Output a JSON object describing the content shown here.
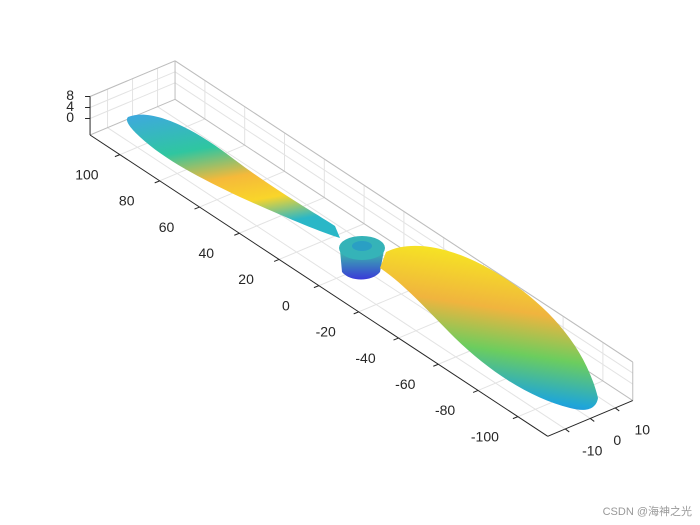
{
  "chart_data": {
    "type": "surface",
    "xlim": [
      -115,
      115
    ],
    "xticks": [
      -100,
      -80,
      -60,
      -40,
      -20,
      0,
      20,
      40,
      60,
      80,
      100
    ],
    "ylim": [
      -17,
      17
    ],
    "yticks": [
      -10,
      0,
      10
    ],
    "zlim": [
      -6,
      8
    ],
    "zticks": [
      0,
      4,
      8
    ],
    "grid": true,
    "watermark": "CSDN @海神之光"
  }
}
